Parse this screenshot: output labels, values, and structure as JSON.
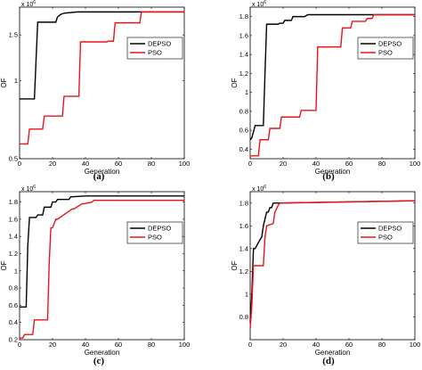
{
  "chart_data": [
    {
      "type": "line",
      "caption": "(a)",
      "xlabel": "Generation",
      "ylabel": "OF",
      "exponent_base": "x 10",
      "exponent_power": "6",
      "xlim": [
        0,
        100
      ],
      "ylim": [
        0.5,
        1.92
      ],
      "y_scale": "log",
      "xticks": [
        0,
        20,
        40,
        60,
        80,
        100
      ],
      "yticks": [
        0.5,
        1,
        1.5
      ],
      "ytick_labels": [
        "0.5",
        "1",
        "1.5"
      ],
      "legend_position": "right",
      "colors": {
        "DEPSO": "#000000",
        "PSO": "#e8141b"
      },
      "series": [
        {
          "name": "DEPSO",
          "x": [
            0,
            9,
            10,
            11,
            22,
            23,
            25,
            27,
            35,
            100
          ],
          "y": [
            0.85,
            0.85,
            1.2,
            1.68,
            1.68,
            1.76,
            1.8,
            1.82,
            1.84,
            1.84
          ]
        },
        {
          "name": "PSO",
          "x": [
            0,
            5,
            6,
            14,
            15,
            26,
            27,
            36,
            37,
            53,
            54,
            57,
            58,
            73,
            74,
            100
          ],
          "y": [
            0.57,
            0.57,
            0.65,
            0.65,
            0.73,
            0.73,
            0.87,
            0.87,
            1.41,
            1.41,
            1.42,
            1.42,
            1.67,
            1.67,
            1.84,
            1.84
          ]
        }
      ]
    },
    {
      "type": "line",
      "caption": "(b)",
      "xlabel": "Generation",
      "ylabel": "OF",
      "exponent_base": "x 10",
      "exponent_power": "6",
      "xlim": [
        0,
        100
      ],
      "ylim": [
        0.3,
        1.9
      ],
      "xticks": [
        0,
        20,
        40,
        60,
        80,
        100
      ],
      "yticks": [
        0.4,
        0.6,
        0.8,
        1,
        1.2,
        1.4,
        1.6,
        1.8
      ],
      "ytick_labels": [
        "0.4",
        "0.6",
        "0.8",
        "1",
        "1.2",
        "1.4",
        "1.6",
        "1.8"
      ],
      "legend_position": "right",
      "colors": {
        "DEPSO": "#000000",
        "PSO": "#e8141b"
      },
      "series": [
        {
          "name": "DEPSO",
          "x": [
            0,
            1,
            3,
            8,
            9,
            10,
            11,
            17,
            18,
            20,
            21,
            25,
            26,
            33,
            35,
            100
          ],
          "y": [
            0.5,
            0.52,
            0.65,
            0.65,
            1.2,
            1.72,
            1.72,
            1.72,
            1.73,
            1.73,
            1.76,
            1.76,
            1.8,
            1.8,
            1.82,
            1.82
          ]
        },
        {
          "name": "PSO",
          "x": [
            0,
            5,
            6,
            11,
            12,
            18,
            19,
            30,
            31,
            40,
            41,
            55,
            56,
            61,
            62,
            70,
            71,
            74,
            75,
            100
          ],
          "y": [
            0.33,
            0.33,
            0.5,
            0.5,
            0.62,
            0.62,
            0.74,
            0.74,
            0.81,
            0.81,
            1.48,
            1.48,
            1.68,
            1.68,
            1.75,
            1.75,
            1.78,
            1.78,
            1.82,
            1.82
          ]
        }
      ]
    },
    {
      "type": "line",
      "caption": "(c)",
      "xlabel": "Generation",
      "ylabel": "OF",
      "exponent_base": "x 10",
      "exponent_power": "6",
      "xlim": [
        0,
        100
      ],
      "ylim": [
        0.2,
        1.92
      ],
      "xticks": [
        0,
        20,
        40,
        60,
        80,
        100
      ],
      "yticks": [
        0.2,
        0.4,
        0.6,
        0.8,
        1,
        1.2,
        1.4,
        1.6,
        1.8
      ],
      "ytick_labels": [
        "0.2",
        "0.4",
        "0.6",
        "0.8",
        "1",
        "1.2",
        "1.4",
        "1.6",
        "1.8"
      ],
      "legend_position": "right",
      "colors": {
        "DEPSO": "#000000",
        "PSO": "#e8141b"
      },
      "series": [
        {
          "name": "DEPSO",
          "x": [
            0,
            4,
            5,
            6,
            10,
            11,
            14,
            15,
            19,
            20,
            22,
            23,
            30,
            31,
            40,
            100
          ],
          "y": [
            0.58,
            0.58,
            1.3,
            1.62,
            1.62,
            1.65,
            1.65,
            1.74,
            1.74,
            1.8,
            1.8,
            1.83,
            1.83,
            1.86,
            1.87,
            1.87
          ]
        },
        {
          "name": "PSO",
          "x": [
            0,
            2,
            3,
            8,
            9,
            17,
            18,
            19,
            20,
            22,
            23,
            32,
            33,
            38,
            39,
            44,
            45,
            100
          ],
          "y": [
            0.22,
            0.22,
            0.26,
            0.26,
            0.43,
            0.43,
            1.1,
            1.5,
            1.5,
            1.6,
            1.6,
            1.72,
            1.72,
            1.78,
            1.78,
            1.8,
            1.82,
            1.82
          ]
        }
      ]
    },
    {
      "type": "line",
      "caption": "(d)",
      "xlabel": "Generation",
      "ylabel": "OF",
      "exponent_base": "x 10",
      "exponent_power": "6",
      "xlim": [
        0,
        100
      ],
      "ylim": [
        0.6,
        1.9
      ],
      "xticks": [
        0,
        20,
        40,
        60,
        80,
        100
      ],
      "yticks": [
        0.8,
        1,
        1.2,
        1.4,
        1.6,
        1.8
      ],
      "ytick_labels": [
        "0.8",
        "1",
        "1.2",
        "1.4",
        "1.6",
        "1.8"
      ],
      "legend_position": "right",
      "colors": {
        "DEPSO": "#000000",
        "PSO": "#e8141b"
      },
      "series": [
        {
          "name": "DEPSO",
          "x": [
            0,
            1,
            2,
            3,
            6,
            7,
            8,
            10,
            11,
            12,
            13,
            14,
            100
          ],
          "y": [
            0.75,
            1.0,
            1.4,
            1.4,
            1.48,
            1.5,
            1.6,
            1.72,
            1.72,
            1.76,
            1.76,
            1.8,
            1.82
          ]
        },
        {
          "name": "PSO",
          "x": [
            0,
            1,
            2,
            3,
            8,
            9,
            10,
            14,
            15,
            16,
            17,
            18,
            100
          ],
          "y": [
            0.7,
            0.9,
            1.25,
            1.25,
            1.25,
            1.5,
            1.6,
            1.62,
            1.72,
            1.75,
            1.78,
            1.8,
            1.82
          ]
        }
      ]
    }
  ]
}
